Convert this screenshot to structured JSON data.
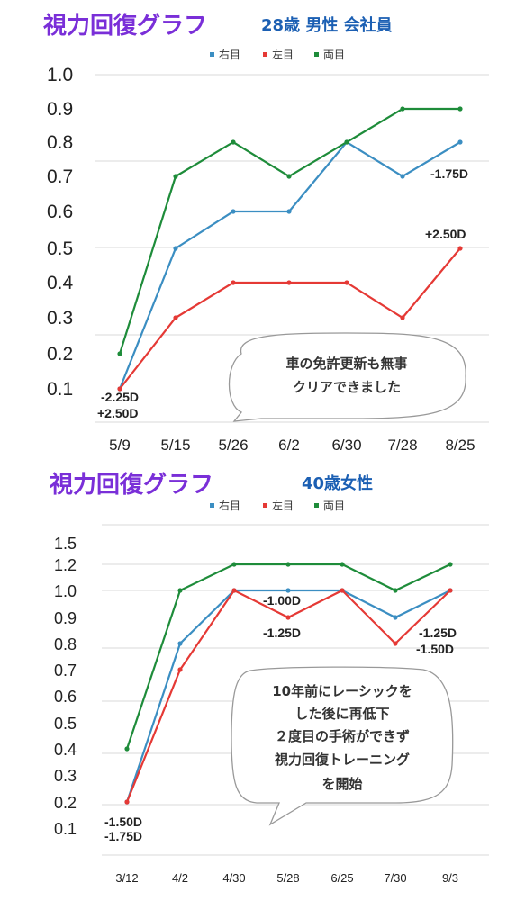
{
  "chart_data": [
    {
      "type": "line",
      "title": "視力回復グラフ",
      "subtitle": "28歳 男性 会社員",
      "categories": [
        "5/9",
        "5/15",
        "5/26",
        "6/2",
        "6/30",
        "7/28",
        "8/25"
      ],
      "yticks": [
        "1.0",
        "0.9",
        "0.8",
        "0.7",
        "0.6",
        "0.5",
        "0.4",
        "0.3",
        "0.2",
        "0.1"
      ],
      "series": [
        {
          "name": "右目",
          "color": "#3b8ec2",
          "values": [
            0.1,
            0.5,
            0.6,
            0.6,
            0.8,
            0.7,
            0.8
          ]
        },
        {
          "name": "左目",
          "color": "#e53935",
          "values": [
            0.1,
            0.3,
            0.4,
            0.4,
            0.4,
            0.3,
            0.5
          ]
        },
        {
          "name": "両目",
          "color": "#1e8c3a",
          "values": [
            0.2,
            0.7,
            0.8,
            0.7,
            0.8,
            0.9,
            0.9
          ]
        }
      ],
      "annotations": [
        "-2.25D",
        "+2.50D",
        "-1.75D",
        "+2.50D"
      ],
      "callout": [
        "車の免許更新も無事",
        "クリアできました"
      ]
    },
    {
      "type": "line",
      "title": "視力回復グラフ",
      "subtitle": "40歳女性",
      "categories": [
        "3/12",
        "4/2",
        "4/30",
        "5/28",
        "6/25",
        "7/30",
        "9/3"
      ],
      "yticks": [
        "1.5",
        "1.2",
        "1.0",
        "0.9",
        "0.8",
        "0.7",
        "0.6",
        "0.5",
        "0.4",
        "0.3",
        "0.2",
        "0.1"
      ],
      "series": [
        {
          "name": "右目",
          "color": "#3b8ec2",
          "values": [
            0.2,
            0.8,
            1.0,
            1.0,
            1.0,
            0.9,
            1.0
          ]
        },
        {
          "name": "左目",
          "color": "#e53935",
          "values": [
            0.2,
            0.7,
            1.0,
            0.9,
            1.0,
            0.8,
            1.0
          ]
        },
        {
          "name": "両目",
          "color": "#1e8c3a",
          "values": [
            0.4,
            1.0,
            1.2,
            1.2,
            1.2,
            1.0,
            1.2
          ]
        }
      ],
      "annotations": [
        "-1.00D",
        "-1.25D",
        "-1.25D",
        "-1.50D",
        "-1.50D",
        "-1.75D"
      ],
      "callout": [
        "10年前にレーシックを",
        "した後に再低下",
        "２度目の手術ができず",
        "視力回復トレーニング",
        "を開始"
      ]
    }
  ]
}
